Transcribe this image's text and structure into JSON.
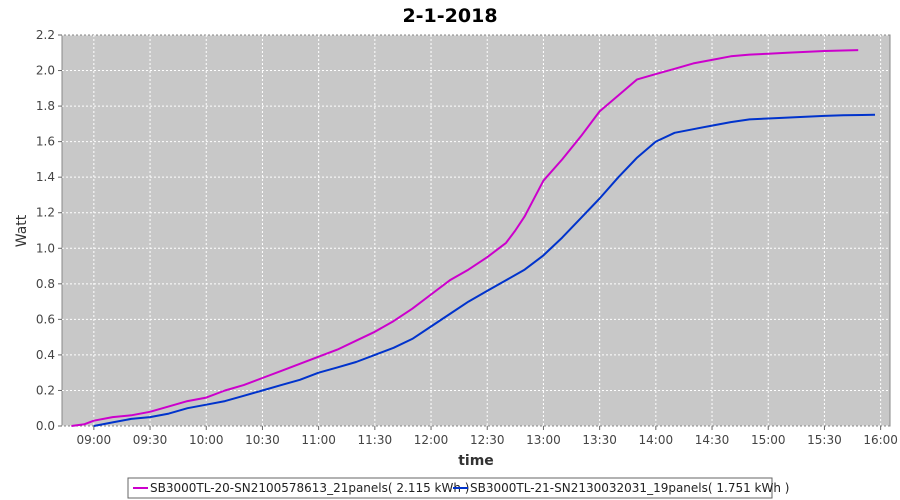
{
  "chart_data": {
    "type": "line",
    "title": "2-1-2018",
    "xlabel": "time",
    "ylabel": "Watt",
    "ylim": [
      0.0,
      2.2
    ],
    "xlim": [
      "08:43",
      "16:05"
    ],
    "x_ticks": [
      "09:00",
      "09:30",
      "10:00",
      "10:30",
      "11:00",
      "11:30",
      "12:00",
      "12:30",
      "13:00",
      "13:30",
      "14:00",
      "14:30",
      "15:00",
      "15:30",
      "16:00"
    ],
    "y_ticks": [
      "0.0",
      "0.2",
      "0.4",
      "0.6",
      "0.8",
      "1.0",
      "1.2",
      "1.4",
      "1.6",
      "1.8",
      "2.0",
      "2.2"
    ],
    "grid": true,
    "legend_position": "bottom",
    "series": [
      {
        "name": "SB3000TL-20-SN2100578613_21panels( 2.115 kWh )",
        "color": "#cc00cc",
        "x": [
          "08:48",
          "08:55",
          "09:00",
          "09:10",
          "09:20",
          "09:30",
          "09:40",
          "09:50",
          "10:00",
          "10:10",
          "10:20",
          "10:30",
          "10:40",
          "10:50",
          "11:00",
          "11:10",
          "11:20",
          "11:30",
          "11:40",
          "11:50",
          "12:00",
          "12:10",
          "12:20",
          "12:30",
          "12:40",
          "12:45",
          "12:50",
          "13:00",
          "13:10",
          "13:20",
          "13:30",
          "13:40",
          "13:50",
          "14:00",
          "14:10",
          "14:20",
          "14:30",
          "14:40",
          "14:50",
          "15:00",
          "15:10",
          "15:20",
          "15:30",
          "15:40",
          "15:48"
        ],
        "values": [
          0.0,
          0.01,
          0.03,
          0.05,
          0.06,
          0.08,
          0.11,
          0.14,
          0.16,
          0.2,
          0.23,
          0.27,
          0.31,
          0.35,
          0.39,
          0.43,
          0.48,
          0.53,
          0.59,
          0.66,
          0.74,
          0.82,
          0.88,
          0.95,
          1.03,
          1.1,
          1.18,
          1.38,
          1.5,
          1.63,
          1.77,
          1.86,
          1.95,
          1.98,
          2.01,
          2.04,
          2.06,
          2.08,
          2.09,
          2.095,
          2.1,
          2.105,
          2.11,
          2.113,
          2.115
        ]
      },
      {
        "name": "SB3000TL-21-SN2130032031_19panels( 1.751 kWh )",
        "color": "#0033cc",
        "x": [
          "09:00",
          "09:10",
          "09:20",
          "09:30",
          "09:40",
          "09:50",
          "10:00",
          "10:10",
          "10:20",
          "10:30",
          "10:40",
          "10:50",
          "11:00",
          "11:10",
          "11:20",
          "11:30",
          "11:40",
          "11:50",
          "12:00",
          "12:10",
          "12:20",
          "12:30",
          "12:40",
          "12:50",
          "13:00",
          "13:10",
          "13:20",
          "13:30",
          "13:40",
          "13:50",
          "14:00",
          "14:10",
          "14:20",
          "14:30",
          "14:40",
          "14:50",
          "15:00",
          "15:10",
          "15:20",
          "15:30",
          "15:40",
          "15:50",
          "15:57"
        ],
        "values": [
          0.0,
          0.02,
          0.04,
          0.05,
          0.07,
          0.1,
          0.12,
          0.14,
          0.17,
          0.2,
          0.23,
          0.26,
          0.3,
          0.33,
          0.36,
          0.4,
          0.44,
          0.49,
          0.56,
          0.63,
          0.7,
          0.76,
          0.82,
          0.88,
          0.96,
          1.06,
          1.17,
          1.28,
          1.4,
          1.51,
          1.6,
          1.65,
          1.67,
          1.69,
          1.71,
          1.725,
          1.73,
          1.735,
          1.74,
          1.745,
          1.748,
          1.75,
          1.751
        ]
      }
    ]
  }
}
